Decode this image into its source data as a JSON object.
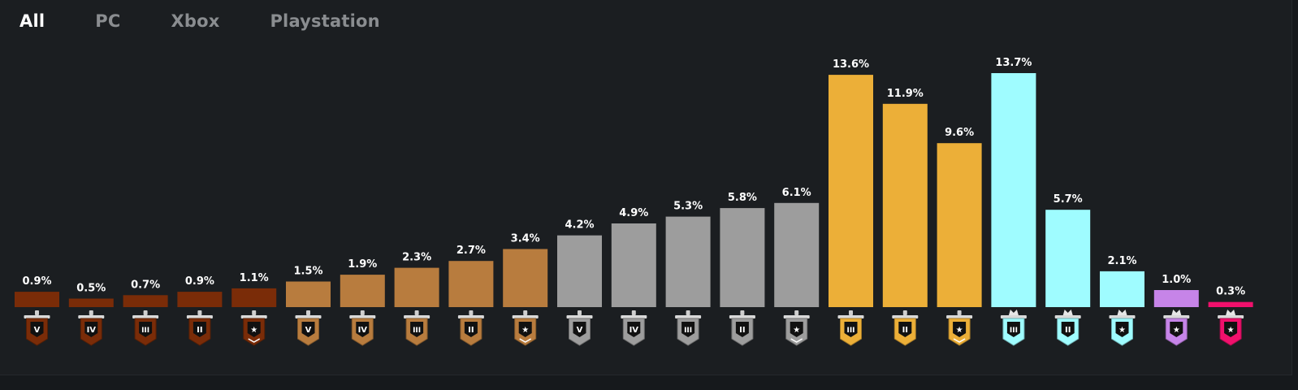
{
  "tabs": [
    {
      "label": "All",
      "active": true
    },
    {
      "label": "PC",
      "active": false
    },
    {
      "label": "Xbox",
      "active": false
    },
    {
      "label": "Playstation",
      "active": false
    }
  ],
  "chart_data": {
    "type": "bar",
    "title": "",
    "xlabel": "",
    "ylabel": "",
    "ylim": [
      0,
      13.7
    ],
    "grid": false,
    "categories": [
      "Copper V",
      "Copper IV",
      "Copper III",
      "Copper II",
      "Copper I",
      "Bronze V",
      "Bronze IV",
      "Bronze III",
      "Bronze II",
      "Bronze I",
      "Silver V",
      "Silver IV",
      "Silver III",
      "Silver II",
      "Silver I",
      "Gold III",
      "Gold II",
      "Gold I",
      "Platinum III",
      "Platinum II",
      "Platinum I",
      "Diamond",
      "Champion"
    ],
    "values": [
      0.9,
      0.5,
      0.7,
      0.9,
      1.1,
      1.5,
      1.9,
      2.3,
      2.7,
      3.4,
      4.2,
      4.9,
      5.3,
      5.8,
      6.1,
      13.6,
      11.9,
      9.6,
      13.7,
      5.7,
      2.1,
      1.0,
      0.3
    ],
    "value_labels": [
      "0.9%",
      "0.5%",
      "0.7%",
      "0.9%",
      "1.1%",
      "1.5%",
      "1.9%",
      "2.3%",
      "2.7%",
      "3.4%",
      "4.2%",
      "4.9%",
      "5.3%",
      "5.8%",
      "6.1%",
      "13.6%",
      "11.9%",
      "9.6%",
      "13.7%",
      "5.7%",
      "2.1%",
      "1.0%",
      "0.3%"
    ],
    "rank_marks": [
      "V",
      "IV",
      "III",
      "II",
      "★",
      "V",
      "IV",
      "III",
      "II",
      "★",
      "V",
      "IV",
      "III",
      "II",
      "★",
      "III",
      "II",
      "★",
      "III",
      "II",
      "★",
      "★",
      "★"
    ],
    "tiers": [
      "copper",
      "copper",
      "copper",
      "copper",
      "copper",
      "bronze",
      "bronze",
      "bronze",
      "bronze",
      "bronze",
      "silver",
      "silver",
      "silver",
      "silver",
      "silver",
      "gold",
      "gold",
      "gold",
      "platinum",
      "platinum",
      "platinum",
      "diamond",
      "champion"
    ]
  },
  "colors": {
    "copper": "#7a2c08",
    "bronze": "#b87c3e",
    "silver": "#9d9d9d",
    "gold": "#ecaf38",
    "platinum": "#9ffcff",
    "diamond": "#c684e8",
    "champion": "#f0106c"
  },
  "icons": {
    "rank": "rank-banner-icon"
  }
}
